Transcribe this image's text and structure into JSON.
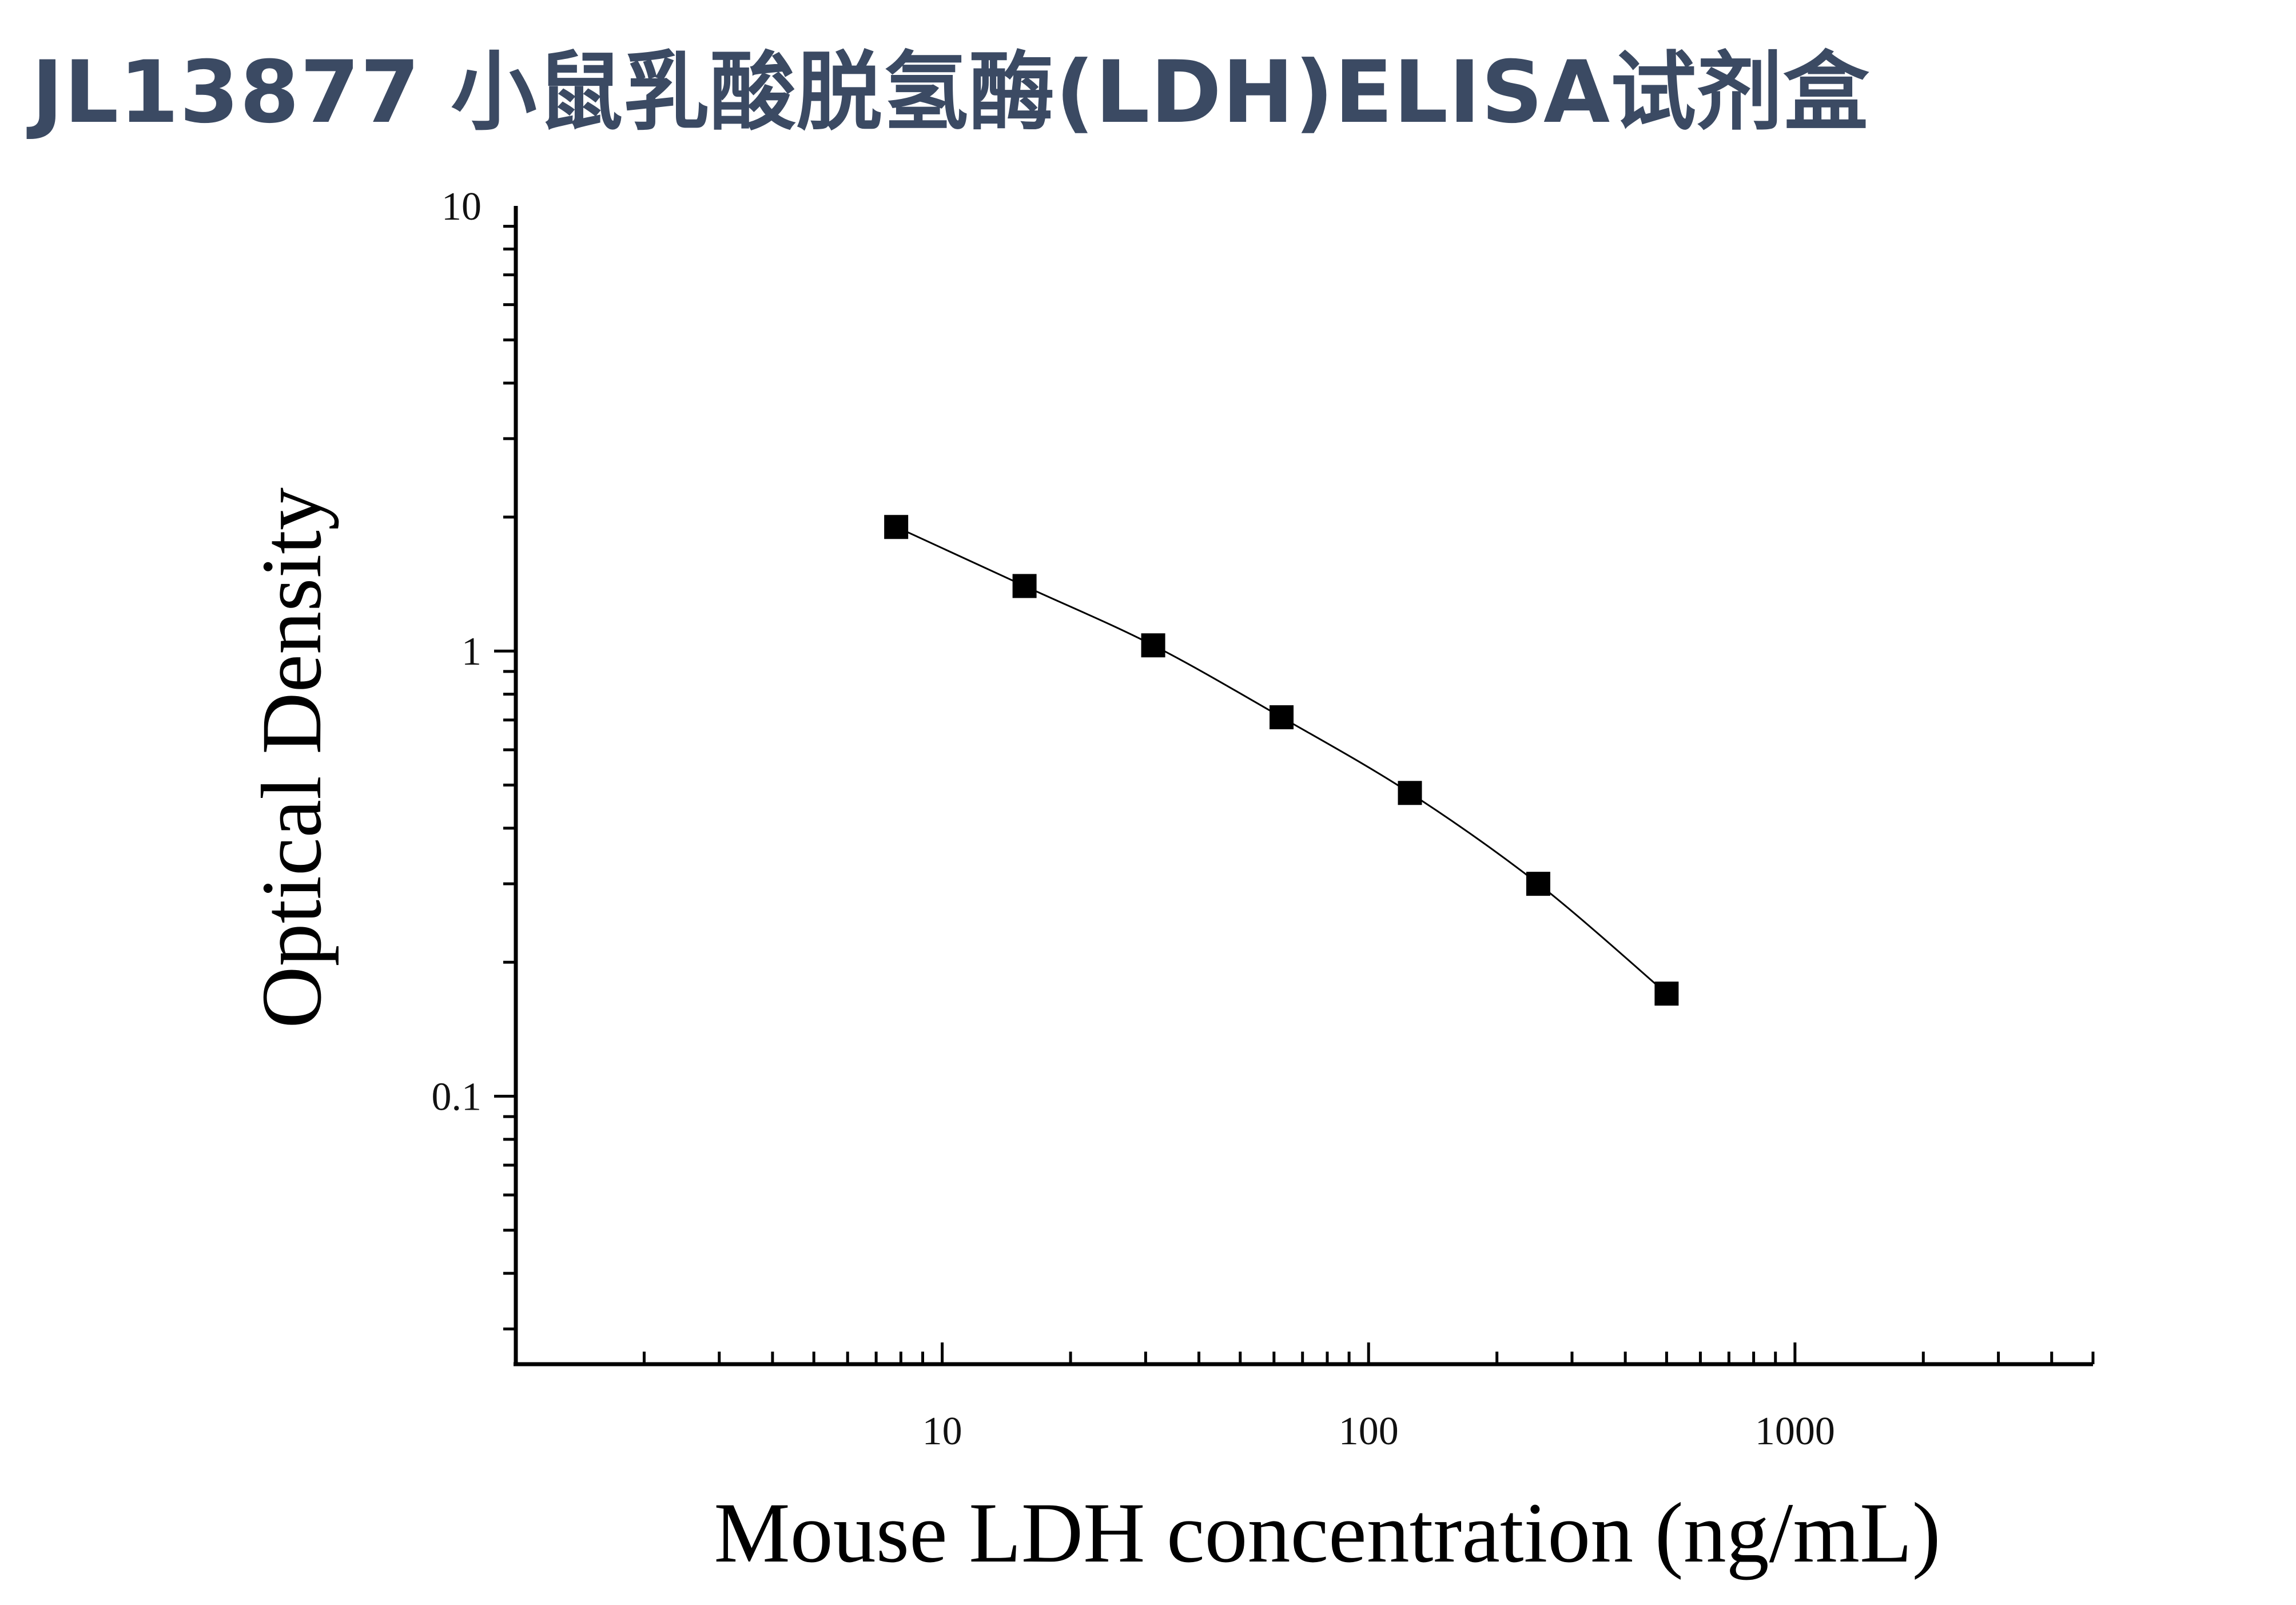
{
  "title": "JL13877 小鼠乳酸脱氢酶(LDH)ELISA试剂盒",
  "chart_data": {
    "type": "line",
    "xscale": "log",
    "yscale": "log",
    "xlabel": "Mouse LDH concentration (ng/mL)",
    "ylabel": "Optical Density",
    "xlim": [
      1,
      5000
    ],
    "ylim": [
      0.025,
      10
    ],
    "x_ticks": [
      {
        "value": 10,
        "label": "10"
      },
      {
        "value": 100,
        "label": "100"
      },
      {
        "value": 1000,
        "label": "1000"
      }
    ],
    "y_ticks": [
      {
        "value": 0.1,
        "label": "0.1"
      },
      {
        "value": 1,
        "label": "1"
      },
      {
        "value": 10,
        "label": "10"
      }
    ],
    "grid": false,
    "marker": "square",
    "line_color": "#000000",
    "marker_color": "#000000",
    "series": [
      {
        "x": [
          7.8,
          15.6,
          31.25,
          62.5,
          125,
          250,
          500
        ],
        "y": [
          1.9,
          1.4,
          1.03,
          0.71,
          0.48,
          0.3,
          0.17
        ]
      }
    ]
  }
}
